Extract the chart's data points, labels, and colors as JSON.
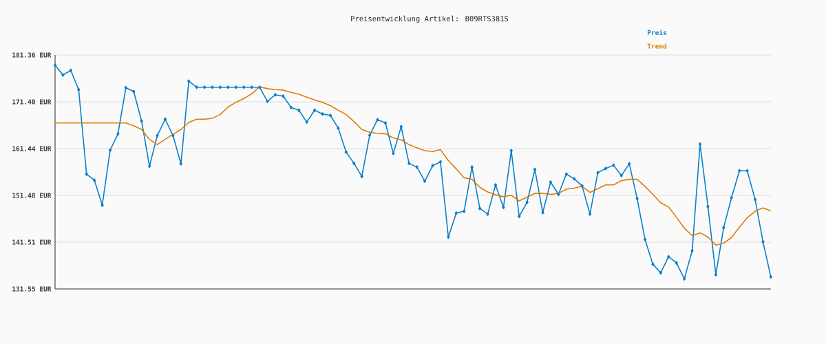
{
  "chart_data": {
    "type": "line",
    "title": "Preisentwicklung Artikel: B09RTS381S",
    "categories": [
      null,
      null,
      null,
      null,
      null,
      null,
      null,
      null,
      null,
      null,
      null,
      null,
      null,
      null,
      null,
      null,
      null,
      null,
      null,
      null,
      null,
      null,
      null,
      null,
      null,
      null,
      null,
      null,
      null,
      null,
      null,
      null,
      null,
      null,
      null,
      null,
      null,
      null,
      null,
      null,
      null,
      null,
      null,
      null,
      null,
      null,
      null,
      null,
      null,
      null,
      null,
      null,
      null,
      null,
      null,
      null,
      null,
      null,
      null,
      null,
      null,
      null,
      null,
      null,
      null,
      null,
      null,
      null,
      null,
      null,
      null,
      null,
      null,
      null,
      null,
      null,
      null,
      null,
      null,
      null,
      null,
      null,
      null,
      null,
      null,
      null,
      null,
      null,
      null,
      null,
      null,
      null
    ],
    "series": [
      {
        "name": "Preis",
        "color": "#0a7fcc",
        "marker": "diamond",
        "values": [
          179.2,
          177.1,
          178.1,
          174.0,
          156.0,
          154.7,
          149.4,
          161.1,
          164.6,
          174.4,
          173.6,
          167.3,
          157.7,
          164.2,
          167.7,
          164.2,
          158.2,
          175.8,
          174.5,
          174.5,
          174.5,
          174.5,
          174.5,
          174.5,
          174.5,
          174.5,
          174.5,
          171.5,
          172.9,
          172.6,
          170.2,
          169.6,
          167.1,
          169.6,
          168.8,
          168.5,
          165.8,
          160.7,
          158.3,
          155.5,
          164.3,
          167.6,
          166.9,
          160.4,
          166.1,
          158.3,
          157.5,
          154.5,
          157.8,
          158.6,
          142.6,
          147.7,
          148.1,
          157.5,
          148.7,
          147.5,
          153.7,
          148.9,
          161.0,
          147.0,
          150.0,
          157.0,
          147.8,
          154.3,
          151.7,
          156.0,
          155.0,
          153.5,
          147.5,
          156.3,
          157.2,
          157.9,
          155.7,
          158.2,
          150.8,
          142.1,
          136.8,
          135.0,
          138.4,
          137.1,
          133.7,
          139.7,
          162.4,
          149.1,
          134.6,
          144.6,
          151.0,
          156.7,
          156.7,
          150.6,
          141.6,
          134.1
        ]
      },
      {
        "name": "Trend",
        "color": "#e07b00",
        "marker": "none",
        "values": [
          166.9,
          166.9,
          166.9,
          166.9,
          166.9,
          166.9,
          166.9,
          166.9,
          166.9,
          166.9,
          166.3,
          165.5,
          163.4,
          162.3,
          163.4,
          164.5,
          165.5,
          167.0,
          167.7,
          167.7,
          167.9,
          168.7,
          170.3,
          171.3,
          172.1,
          173.1,
          174.6,
          174.2,
          174.0,
          173.9,
          173.4,
          173.0,
          172.4,
          171.8,
          171.3,
          170.6,
          169.6,
          168.7,
          167.2,
          165.5,
          164.9,
          164.7,
          164.6,
          163.7,
          163.3,
          162.3,
          161.6,
          161.0,
          160.8,
          161.2,
          158.9,
          157.1,
          155.2,
          154.9,
          153.2,
          152.2,
          151.6,
          151.2,
          151.5,
          150.3,
          151.1,
          151.9,
          151.9,
          151.7,
          151.9,
          152.8,
          153.0,
          153.4,
          152.1,
          152.9,
          153.7,
          153.7,
          154.6,
          154.9,
          154.9,
          153.4,
          151.7,
          149.9,
          149.0,
          146.8,
          144.5,
          142.9,
          143.5,
          142.6,
          140.9,
          141.3,
          142.5,
          144.7,
          146.7,
          148.1,
          148.8,
          148.2
        ]
      }
    ],
    "ylim": [
      131.55,
      181.36
    ],
    "yticks": [
      {
        "value": 131.55,
        "label": "131.55 EUR"
      },
      {
        "value": 141.51,
        "label": "141.51 EUR"
      },
      {
        "value": 151.48,
        "label": "151.48 EUR"
      },
      {
        "value": 161.44,
        "label": "161.44 EUR"
      },
      {
        "value": 171.4,
        "label": "171.40 EUR"
      },
      {
        "value": 181.36,
        "label": "181.36 EUR"
      }
    ],
    "grid": "y",
    "legend": "top right"
  }
}
